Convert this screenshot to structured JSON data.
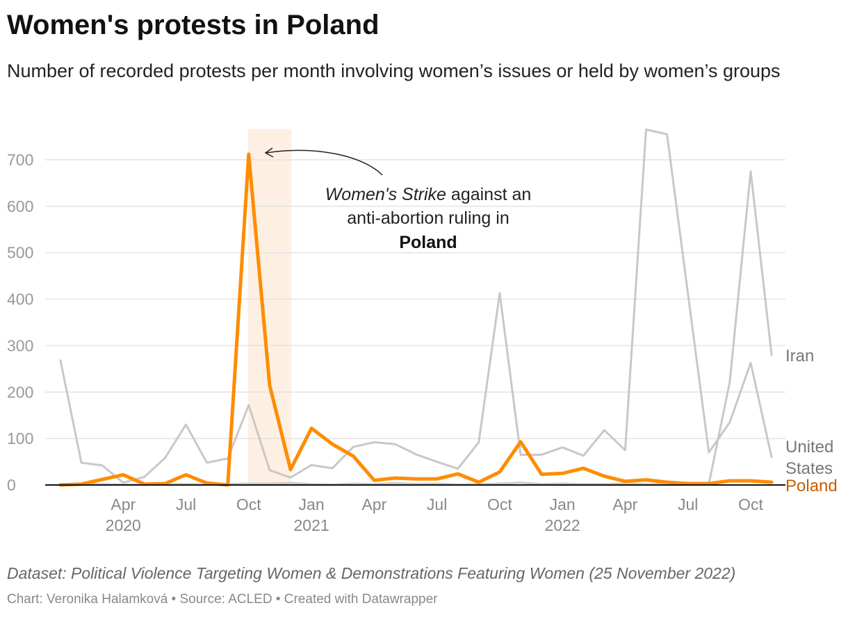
{
  "title": "Women's protests in Poland",
  "subtitle": "Number of recorded protests per month involving women’s issues or held by women’s groups",
  "dataset_note": "Dataset: Political Violence Targeting Women & Demonstrations Featuring Women (25 November 2022)",
  "footer": "Chart: Veronika Halamková • Source: ACLED • Created with Datawrapper",
  "annotation": {
    "italic": "Women's Strike",
    "line1_rest": " against an",
    "line2": "anti-abortion ruling in",
    "line3": "Poland"
  },
  "colors": {
    "poland": "#ff8c00",
    "poland_label": "#c45c00",
    "other": "#c8c8c8",
    "highlight": "#fdf0e2"
  },
  "chart_data": {
    "type": "line",
    "title": "Women's protests in Poland",
    "xlabel": "",
    "ylabel": "",
    "ylim": [
      0,
      770
    ],
    "yticks": [
      0,
      100,
      200,
      300,
      400,
      500,
      600,
      700
    ],
    "x_start": "2020-01",
    "x_end": "2022-11",
    "xticks": [
      {
        "month": 3,
        "label": "Apr",
        "year": "2020"
      },
      {
        "month": 6,
        "label": "Jul",
        "year": ""
      },
      {
        "month": 9,
        "label": "Oct",
        "year": ""
      },
      {
        "month": 12,
        "label": "Jan",
        "year": "2021"
      },
      {
        "month": 15,
        "label": "Apr",
        "year": ""
      },
      {
        "month": 18,
        "label": "Jul",
        "year": ""
      },
      {
        "month": 21,
        "label": "Oct",
        "year": ""
      },
      {
        "month": 24,
        "label": "Jan",
        "year": "2022"
      },
      {
        "month": 27,
        "label": "Apr",
        "year": ""
      },
      {
        "month": 30,
        "label": "Jul",
        "year": ""
      },
      {
        "month": 33,
        "label": "Oct",
        "year": ""
      }
    ],
    "highlight_range": [
      "2020-10",
      "2020-12"
    ],
    "series": [
      {
        "name": "United States",
        "label_lines": [
          "United",
          "States"
        ],
        "values": [
          268,
          48,
          42,
          5,
          17,
          58,
          130,
          48,
          57,
          172,
          32,
          16,
          43,
          36,
          82,
          92,
          88,
          66,
          50,
          35,
          92,
          413,
          65,
          65,
          81,
          63,
          118,
          75,
          765,
          755,
          412,
          70,
          135,
          263,
          60
        ]
      },
      {
        "name": "Iran",
        "label_lines": [
          "Iran"
        ],
        "values": [
          2,
          1,
          2,
          1,
          1,
          2,
          2,
          1,
          2,
          3,
          3,
          4,
          2,
          1,
          3,
          2,
          4,
          2,
          3,
          1,
          2,
          3,
          5,
          2,
          3,
          2,
          2,
          3,
          2,
          2,
          1,
          2,
          222,
          675,
          280
        ]
      },
      {
        "name": "Poland",
        "label_lines": [
          "Poland"
        ],
        "values": [
          0,
          2,
          12,
          22,
          2,
          3,
          22,
          4,
          0,
          712,
          215,
          33,
          122,
          88,
          62,
          10,
          15,
          13,
          13,
          24,
          6,
          28,
          93,
          23,
          25,
          36,
          19,
          8,
          11,
          6,
          3,
          3,
          9,
          9,
          6
        ]
      }
    ]
  }
}
